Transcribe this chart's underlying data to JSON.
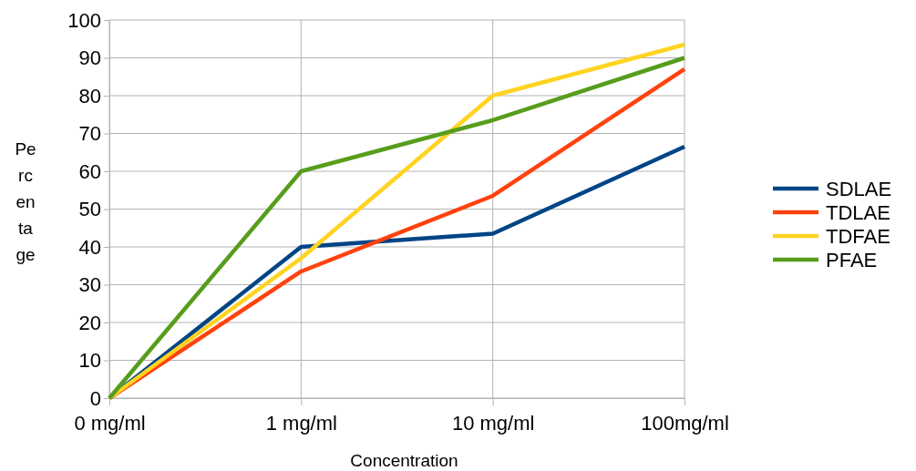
{
  "chart_data": {
    "type": "line",
    "xlabel": "Concentration",
    "ylabel": "Percentage",
    "categories": [
      "0 mg/ml",
      "1 mg/ml",
      "10 mg/ml",
      "100mg/ml"
    ],
    "series": [
      {
        "name": "SDLAE",
        "color": "#004586",
        "values": [
          0,
          40,
          43.5,
          66.5
        ]
      },
      {
        "name": "TDLAE",
        "color": "#ff420e",
        "values": [
          0,
          33.5,
          53.5,
          87
        ]
      },
      {
        "name": "TDFAE",
        "color": "#ffd320",
        "values": [
          0,
          37,
          80,
          93.5
        ]
      },
      {
        "name": "PFAE",
        "color": "#579d1c",
        "values": [
          0,
          60,
          73.5,
          90
        ]
      }
    ],
    "ylim": [
      0,
      100
    ],
    "yticks": [
      0,
      10,
      20,
      30,
      40,
      50,
      60,
      70,
      80,
      90,
      100
    ],
    "grid": true,
    "legend": "right",
    "marker": "none",
    "line_style": "solid"
  }
}
